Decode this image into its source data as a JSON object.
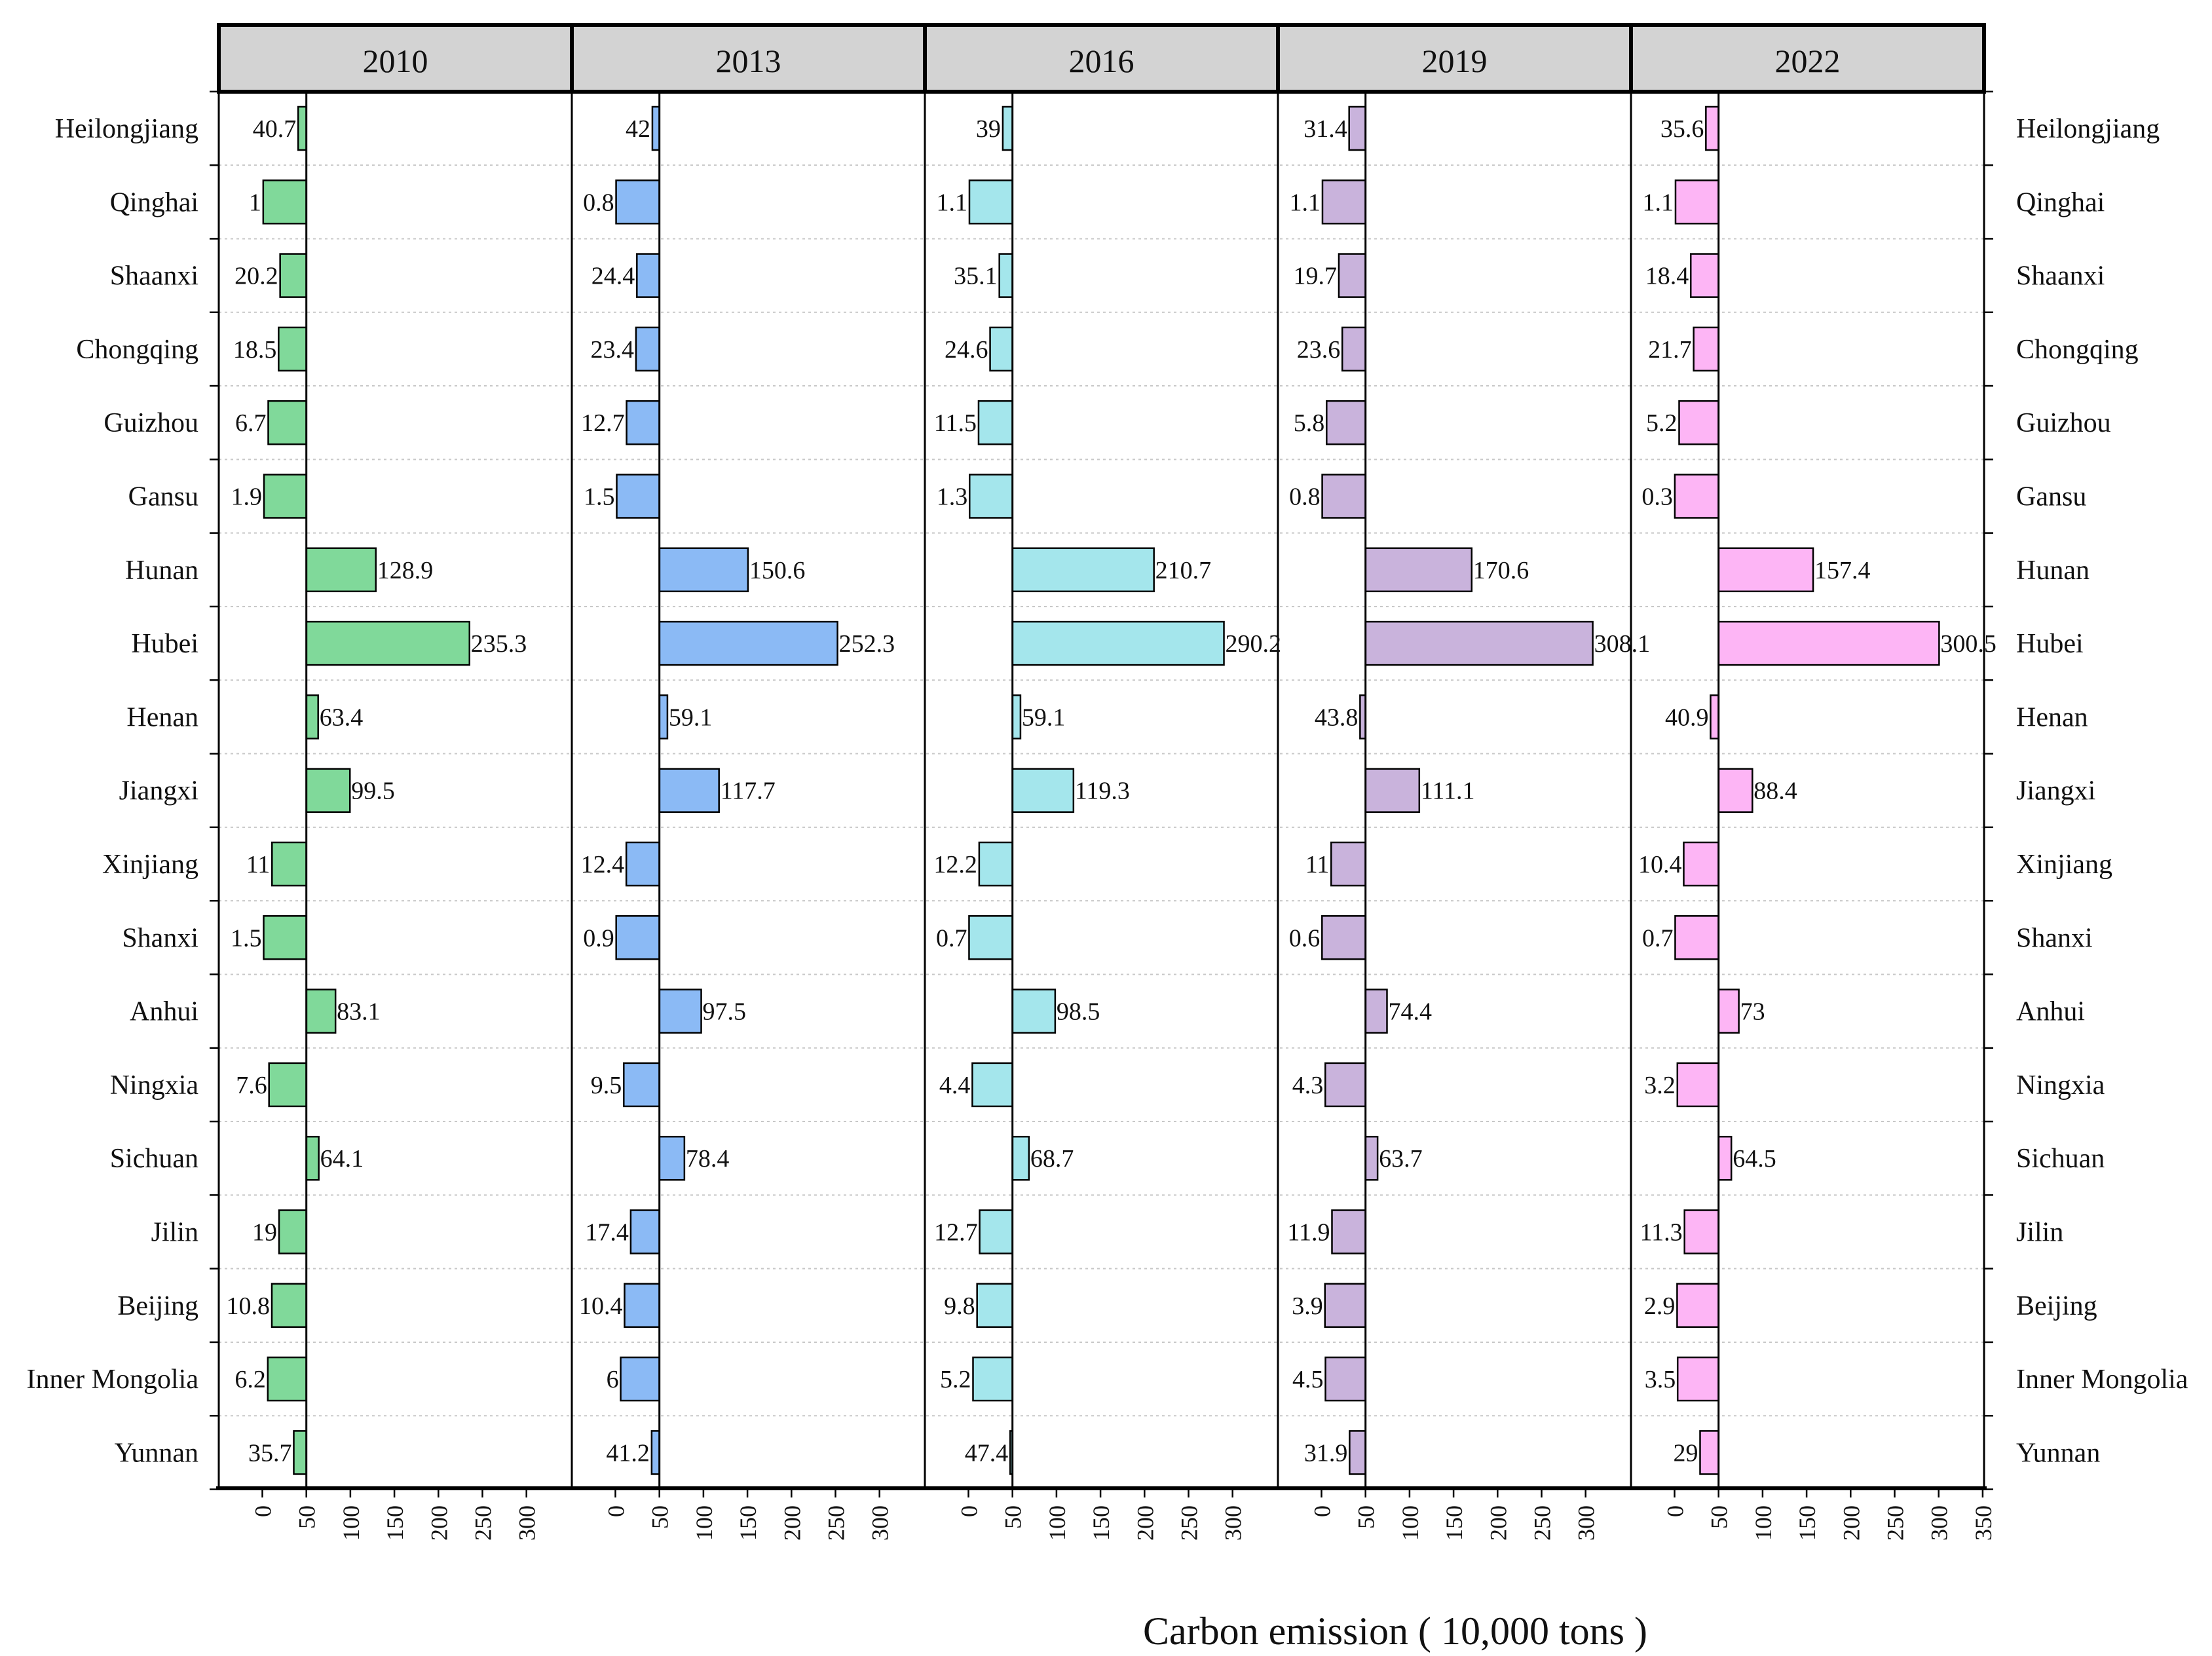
{
  "chart_data": {
    "type": "bar",
    "orientation": "horizontal",
    "xlabel": "Carbon emission ( 10,000 tons )",
    "categories": [
      "Heilongjiang",
      "Qinghai",
      "Shaanxi",
      "Chongqing",
      "Guizhou",
      "Gansu",
      "Hunan",
      "Hubei",
      "Henan",
      "Jiangxi",
      "Xinjiang",
      "Shanxi",
      "Anhui",
      "Ningxia",
      "Sichuan",
      "Jilin",
      "Beijing",
      "Inner Mongolia",
      "Yunnan"
    ],
    "baseline": 50,
    "xlim": [
      -50,
      350
    ],
    "series": [
      {
        "name": "2010",
        "color": "#80d99a",
        "values": [
          40.7,
          1,
          20.2,
          18.5,
          6.7,
          1.9,
          128.9,
          235.3,
          63.4,
          99.5,
          11,
          1.5,
          83.1,
          7.6,
          64.1,
          19,
          10.8,
          6.2,
          35.7
        ],
        "labels": [
          "40.7",
          "1",
          "20.2",
          "18.5",
          "6.7",
          "1.9",
          "128.9",
          "235.3",
          "63.4",
          "99.5",
          "11",
          "1.5",
          "83.1",
          "7.6",
          "64.1",
          "19",
          "10.8",
          "6.2",
          "35.7"
        ],
        "ticks": [
          "0",
          "50",
          "100",
          "150",
          "200",
          "250",
          "300"
        ]
      },
      {
        "name": "2013",
        "color": "#8bbaf5",
        "values": [
          42,
          0.8,
          24.4,
          23.4,
          12.7,
          1.5,
          150.6,
          252.3,
          59.1,
          117.7,
          12.4,
          0.9,
          97.5,
          9.5,
          78.4,
          17.4,
          10.4,
          6,
          41.2
        ],
        "labels": [
          "42",
          "0.8",
          "24.4",
          "23.4",
          "12.7",
          "1.5",
          "150.6",
          "252.3",
          "59.1",
          "117.7",
          "12.4",
          "0.9",
          "97.5",
          "9.5",
          "78.4",
          "17.4",
          "10.4",
          "6",
          "41.2"
        ],
        "ticks": [
          "0",
          "50",
          "100",
          "150",
          "200",
          "250",
          "300"
        ]
      },
      {
        "name": "2016",
        "color": "#a4e6ec",
        "values": [
          39,
          1.1,
          35.1,
          24.6,
          11.5,
          1.3,
          210.7,
          290.2,
          59.1,
          119.3,
          12.2,
          0.7,
          98.5,
          4.4,
          68.7,
          12.7,
          9.8,
          5.2,
          47.4
        ],
        "labels": [
          "39",
          "1.1",
          "35.1",
          "24.6",
          "11.5",
          "1.3",
          "210.7",
          "290.2",
          "59.1",
          "119.3",
          "12.2",
          "0.7",
          "98.5",
          "4.4",
          "68.7",
          "12.7",
          "9.8",
          "5.2",
          "47.4"
        ],
        "ticks": [
          "0",
          "50",
          "100",
          "150",
          "200",
          "250",
          "300"
        ]
      },
      {
        "name": "2019",
        "color": "#c9b3dc",
        "values": [
          31.4,
          1.1,
          19.7,
          23.6,
          5.8,
          0.8,
          170.6,
          308.1,
          43.8,
          111.1,
          11,
          0.6,
          74.4,
          4.3,
          63.7,
          11.9,
          3.9,
          4.5,
          31.9
        ],
        "labels": [
          "31.4",
          "1.1",
          "19.7",
          "23.6",
          "5.8",
          "0.8",
          "170.6",
          "308.1",
          "43.8",
          "111.1",
          "11",
          "0.6",
          "74.4",
          "4.3",
          "63.7",
          "11.9",
          "3.9",
          "4.5",
          "31.9"
        ],
        "ticks": [
          "0",
          "50",
          "100",
          "150",
          "200",
          "250",
          "300"
        ]
      },
      {
        "name": "2022",
        "color": "#fdb5f5",
        "values": [
          35.6,
          1.1,
          18.4,
          21.7,
          5.2,
          0.3,
          157.4,
          300.5,
          40.9,
          88.4,
          10.4,
          0.7,
          73,
          3.2,
          64.5,
          11.3,
          2.9,
          3.5,
          29
        ],
        "labels": [
          "35.6",
          "1.1",
          "18.4",
          "21.7",
          "5.2",
          "0.3",
          "157.4",
          "300.5",
          "40.9",
          "88.4",
          "10.4",
          "0.7",
          "73",
          "3.2",
          "64.5",
          "11.3",
          "2.9",
          "3.5",
          "29"
        ],
        "ticks": [
          "0",
          "50",
          "100",
          "150",
          "200",
          "250",
          "300",
          "350"
        ]
      }
    ]
  }
}
